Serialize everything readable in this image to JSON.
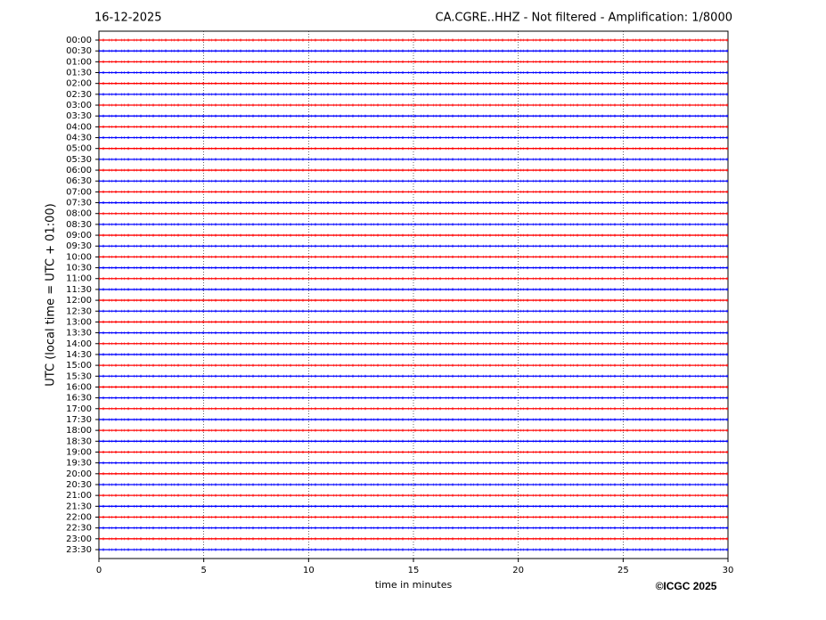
{
  "chart_data": {
    "type": "helicorder",
    "date": "16-12-2025",
    "title": "CA.CGRE..HHZ - Not filtered - Amplification: 1/8000",
    "y_label": "UTC (local time = UTC + 01:00)",
    "x_label": "time in minutes",
    "credit": "©ICGC 2025",
    "categories": [
      "00:00",
      "00:30",
      "01:00",
      "01:30",
      "02:00",
      "02:30",
      "03:00",
      "03:30",
      "04:00",
      "04:30",
      "05:00",
      "05:30",
      "06:00",
      "06:30",
      "07:00",
      "07:30",
      "08:00",
      "08:30",
      "09:00",
      "09:30",
      "10:00",
      "10:30",
      "11:00",
      "11:30",
      "12:00",
      "12:30",
      "13:00",
      "13:30",
      "14:00",
      "14:30",
      "15:00",
      "15:30",
      "16:00",
      "16:30",
      "17:00",
      "17:30",
      "18:00",
      "18:30",
      "19:00",
      "19:30",
      "20:00",
      "20:30",
      "21:00",
      "21:30",
      "22:00",
      "22:30",
      "23:00",
      "23:30"
    ],
    "colors": [
      "#ff0000",
      "#0000ff"
    ],
    "xlim": [
      0,
      30
    ],
    "xticks": [
      0,
      5,
      10,
      15,
      20,
      25,
      30
    ],
    "grid": true
  }
}
